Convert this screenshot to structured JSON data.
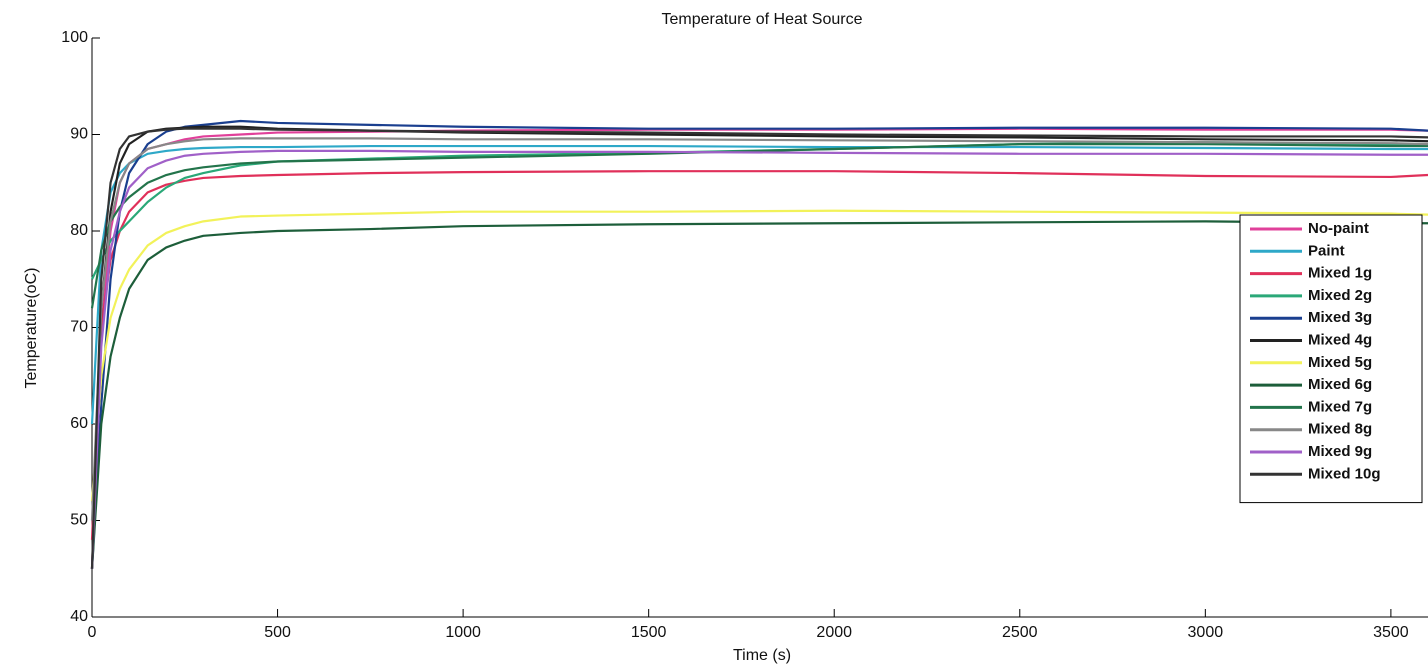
{
  "chart_data": {
    "type": "line",
    "title": "Temperature of Heat Source",
    "x_label": "Time (s)",
    "y_label": "Temperature(oC)",
    "xlim": [
      0,
      3600
    ],
    "ylim": [
      40,
      100
    ],
    "xticks": [
      0,
      500,
      1000,
      1500,
      2000,
      2500,
      3000,
      3500
    ],
    "yticks": [
      40,
      50,
      60,
      70,
      80,
      90,
      100
    ],
    "legend": "right",
    "x": [
      0,
      25,
      50,
      75,
      100,
      150,
      200,
      250,
      300,
      400,
      500,
      750,
      1000,
      1500,
      2000,
      2500,
      3000,
      3500,
      3600
    ],
    "series": [
      {
        "name": "No-paint",
        "color": "#e0409a",
        "values": [
          45,
          70,
          80,
          85,
          87,
          88.5,
          89,
          89.5,
          89.8,
          90,
          90.2,
          90.3,
          90.4,
          90.5,
          90.5,
          90.6,
          90.5,
          90.5,
          90.4
        ]
      },
      {
        "name": "Paint",
        "color": "#2ea8c8",
        "values": [
          60,
          78,
          84,
          86,
          87,
          88,
          88.3,
          88.5,
          88.6,
          88.7,
          88.7,
          88.8,
          88.8,
          88.8,
          88.7,
          88.7,
          88.6,
          88.5,
          88.5
        ]
      },
      {
        "name": "Mixed 1g",
        "color": "#e0305a",
        "values": [
          48,
          70,
          77,
          80,
          82,
          84,
          84.8,
          85.2,
          85.5,
          85.7,
          85.8,
          86,
          86.1,
          86.2,
          86.2,
          86,
          85.7,
          85.6,
          85.8
        ]
      },
      {
        "name": "Mixed 2g",
        "color": "#2aa878",
        "values": [
          75,
          77,
          79,
          80,
          81,
          83,
          84.5,
          85.5,
          86,
          86.8,
          87.2,
          87.5,
          87.8,
          88.1,
          88.5,
          89,
          89.2,
          89,
          89
        ]
      },
      {
        "name": "Mixed 3g",
        "color": "#1a3f8f",
        "values": [
          45,
          62,
          75,
          82,
          86,
          89,
          90.3,
          90.8,
          91,
          91.4,
          91.2,
          91,
          90.8,
          90.6,
          90.6,
          90.7,
          90.7,
          90.6,
          90.4
        ]
      },
      {
        "name": "Mixed 4g",
        "color": "#222222",
        "values": [
          45,
          72,
          82,
          87,
          89,
          90.3,
          90.6,
          90.7,
          90.8,
          90.8,
          90.6,
          90.4,
          90.2,
          90,
          89.8,
          89.7,
          89.5,
          89.4,
          89.3
        ]
      },
      {
        "name": "Mixed 5g",
        "color": "#f2f25a",
        "values": [
          52,
          65,
          71,
          74,
          76,
          78.5,
          79.8,
          80.5,
          81,
          81.5,
          81.6,
          81.8,
          82,
          82,
          82.1,
          82,
          81.9,
          81.8,
          81.7
        ]
      },
      {
        "name": "Mixed 6g",
        "color": "#1d5e3a",
        "values": [
          45,
          60,
          67,
          71,
          74,
          77,
          78.3,
          79,
          79.5,
          79.8,
          80,
          80.2,
          80.5,
          80.7,
          80.8,
          80.9,
          81,
          80.8,
          80.8
        ]
      },
      {
        "name": "Mixed 7g",
        "color": "#23744b",
        "values": [
          72,
          78,
          81,
          82.5,
          83.5,
          85,
          85.8,
          86.3,
          86.6,
          87,
          87.2,
          87.4,
          87.6,
          88,
          88.5,
          89,
          89,
          88.8,
          88.8
        ]
      },
      {
        "name": "Mixed 8g",
        "color": "#888888",
        "values": [
          50,
          72,
          81,
          85,
          87,
          88.5,
          89,
          89.3,
          89.5,
          89.6,
          89.6,
          89.6,
          89.5,
          89.5,
          89.4,
          89.3,
          89.2,
          89.1,
          89
        ]
      },
      {
        "name": "Mixed 9g",
        "color": "#a060c8",
        "values": [
          45,
          68,
          78,
          82,
          84.5,
          86.5,
          87.3,
          87.8,
          88,
          88.2,
          88.3,
          88.3,
          88.2,
          88.2,
          88.1,
          88,
          88,
          87.9,
          87.9
        ]
      },
      {
        "name": "Mixed 10g",
        "color": "#333333",
        "values": [
          45,
          75,
          85,
          88.5,
          89.8,
          90.3,
          90.5,
          90.6,
          90.6,
          90.6,
          90.5,
          90.4,
          90.3,
          90.2,
          90,
          89.9,
          89.8,
          89.8,
          89.7
        ]
      }
    ]
  }
}
